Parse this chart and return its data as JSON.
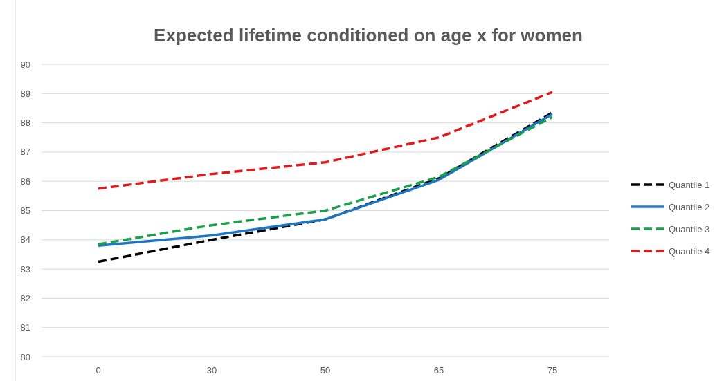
{
  "chart_data": {
    "type": "line",
    "title": "Expected lifetime  conditioned on age x for women",
    "categories": [
      "0",
      "30",
      "50",
      "65",
      "75"
    ],
    "ylim": [
      80,
      90
    ],
    "yticks": [
      80,
      81,
      82,
      83,
      84,
      85,
      86,
      87,
      88,
      89,
      90
    ],
    "grid": "y",
    "legend": "right",
    "marker": "none",
    "series": [
      {
        "name": "Quantile 1",
        "color": "#000000",
        "line_style": "dashed",
        "values": [
          83.25,
          84.0,
          84.7,
          86.1,
          88.35
        ]
      },
      {
        "name": "Quantile 2",
        "color": "#1f77c4",
        "line_style": "solid",
        "values": [
          83.8,
          84.15,
          84.7,
          86.05,
          88.3
        ]
      },
      {
        "name": "Quantile 3",
        "color": "#1aa04a",
        "line_style": "dashed",
        "values": [
          83.85,
          84.5,
          85.0,
          86.15,
          88.2
        ]
      },
      {
        "name": "Quantile 4",
        "color": "#e31a1c",
        "line_style": "dashed",
        "values": [
          85.75,
          86.25,
          86.65,
          87.5,
          89.05
        ]
      }
    ]
  }
}
